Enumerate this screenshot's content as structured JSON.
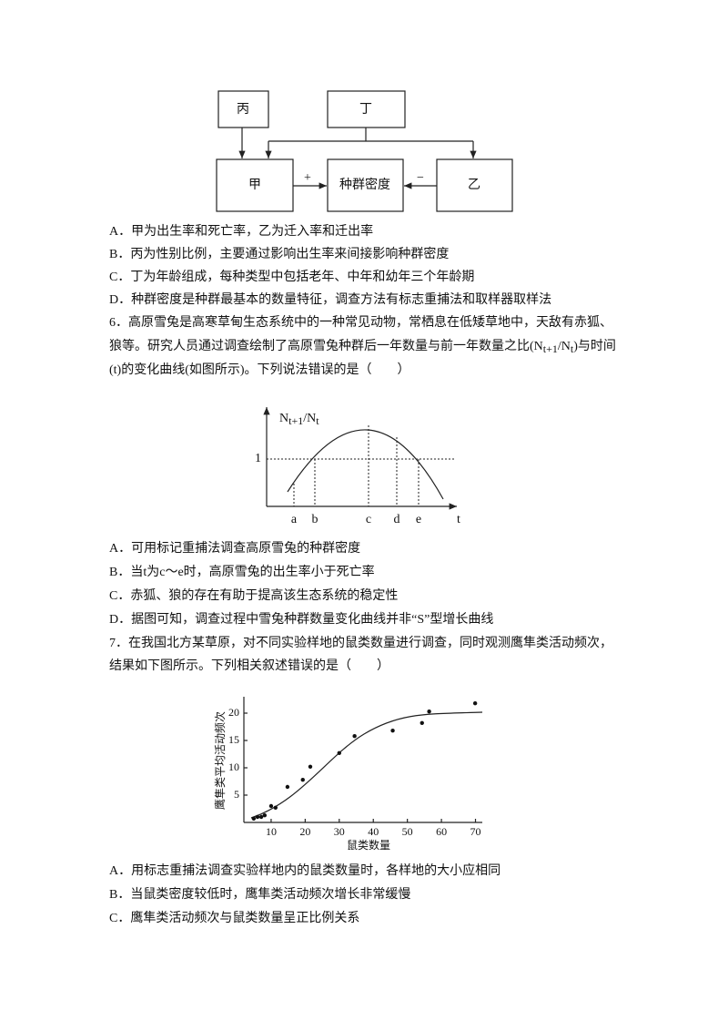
{
  "diagram": {
    "nodes": [
      "丙",
      "丁",
      "甲",
      "种群密度",
      "乙"
    ],
    "edge_labels": [
      "+",
      "−"
    ]
  },
  "question5": {
    "options": [
      "A．甲为出生率和死亡率，乙为迁入率和迁出率",
      "B．丙为性别比例，主要通过影响出生率来间接影响种群密度",
      "C．丁为年龄组成，每种类型中包括老年、中年和幼年三个年龄期",
      "D．种群密度是种群最基本的数量特征，调查方法有标志重捕法和取样器取样法"
    ]
  },
  "question6": {
    "stem": {
      "line1": "6．高原雪兔是高寒草甸生态系统中的一种常见动物，常栖息在低矮草地中，天敌有赤狐、",
      "line2": {
        "before": "狼等。研究人员通过调查绘制了高原雪兔种群后一年数量与前一年数量之比(N",
        "sub1": "t+1",
        "mid": "/N",
        "sub2": "t",
        "after": ")与时间"
      },
      "line3": "(t)的变化曲线(如图所示)。下列说法错误的是（　　）"
    },
    "figure": {
      "y_label": {
        "main": "N",
        "sub1": "t+1",
        "mid": "/N",
        "sub2": "t"
      },
      "y_mark": "1",
      "x_marks": [
        "a",
        "b",
        "c",
        "d",
        "e"
      ],
      "x_label": "t"
    },
    "options": [
      "A．可用标记重捕法调查高原雪兔的种群密度",
      "B．当t为c～e时，高原雪兔的出生率小于死亡率",
      "C．赤狐、狼的存在有助于提高该生态系统的稳定性",
      "D．据图可知，调查过程中雪兔种群数量变化曲线并非“S”型增长曲线"
    ]
  },
  "question7": {
    "stem": [
      "7．在我国北方某草原，对不同实验样地的鼠类数量进行调查，同时观测鹰隼类活动频次，",
      "结果如下图所示。下列相关叙述错误的是（　　）"
    ],
    "figure": {
      "y_label": "鹰隼类平均活动频次",
      "x_label": "鼠类数量",
      "xlim": [
        2,
        72
      ],
      "ylim": [
        0,
        23
      ],
      "xticks": [
        10,
        20,
        30,
        40,
        50,
        60,
        70
      ],
      "yticks": [
        5,
        10,
        15,
        20
      ],
      "x": [
        4.9,
        6.0,
        7.1,
        8.1,
        10.0,
        11.3,
        14.8,
        19.3,
        21.5,
        30.0,
        34.5,
        45.7,
        54.3,
        56.4,
        69.9
      ],
      "y": [
        0.7,
        1.0,
        1.0,
        1.3,
        3.0,
        2.7,
        6.5,
        7.8,
        10.2,
        12.7,
        15.8,
        16.8,
        18.2,
        20.3,
        21.8
      ]
    },
    "options": [
      "A．用标志重捕法调查实验样地内的鼠类数量时，各样地的大小应相同",
      "B．当鼠类密度较低时，鹰隼类活动频次增长非常缓慢",
      "C．鹰隼类活动频次与鼠类数量呈正比例关系"
    ]
  }
}
